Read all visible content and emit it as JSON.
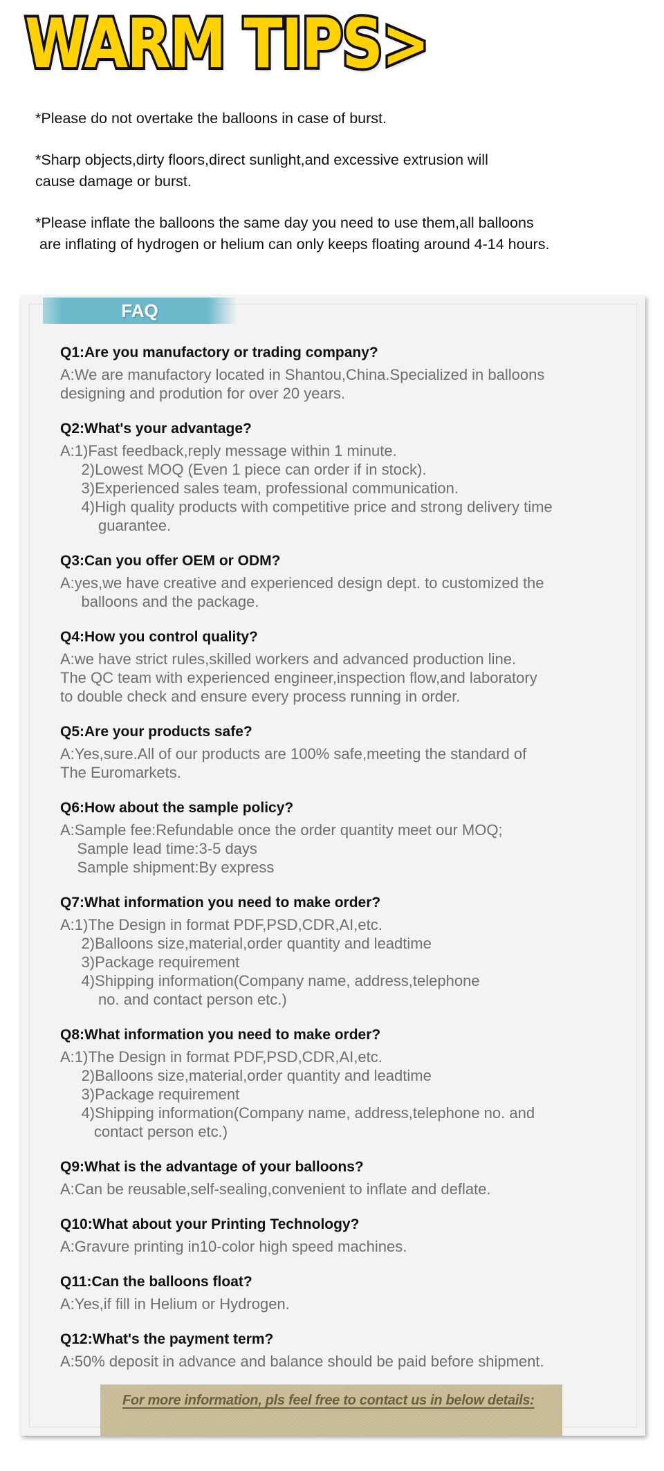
{
  "title": "WARM TIPS>",
  "tips": [
    "*Please do not overtake the balloons in case of burst.",
    "*Sharp objects,dirty floors,direct sunlight,and excessive extrusion will\ncause damage or burst.",
    "*Please inflate the balloons the same day you need to use them,all balloons\n are inflating of hydrogen or helium can only keeps floating around 4-14 hours."
  ],
  "faq": {
    "tab_label": "FAQ",
    "items": [
      {
        "q": "Q1:Are you manufactory or trading company?",
        "a": [
          "A:We are manufactory located in Shantou,China.Specialized in balloons",
          "designing and prodution for over 20 years."
        ]
      },
      {
        "q": "Q2:What's your advantage?",
        "a": [
          "A:1)Fast feedback,reply message within 1 minute.",
          "     2)Lowest MOQ (Even 1 piece can order if in stock).",
          "     3)Experienced sales team, professional communication.",
          "     4)High quality products with competitive price and strong delivery time",
          "         guarantee."
        ]
      },
      {
        "q": "Q3:Can you offer OEM or ODM?",
        "a": [
          "A:yes,we have creative and experienced design dept. to customized the",
          "     balloons and the package."
        ]
      },
      {
        "q": "Q4:How you control quality?",
        "a": [
          "A:we have strict rules,skilled workers and advanced production line.",
          "The QC team with experienced engineer,inspection flow,and laboratory",
          "to double check and ensure every process running in order."
        ]
      },
      {
        "q": "Q5:Are your products safe?",
        "a": [
          "A:Yes,sure.All of our products are 100% safe,meeting the standard of",
          "The Euromarkets."
        ]
      },
      {
        "q": "Q6:How about the sample policy?",
        "a": [
          "A:Sample fee:Refundable once the order quantity meet our MOQ;",
          "    Sample lead time:3-5 days",
          "    Sample shipment:By express"
        ]
      },
      {
        "q": "Q7:What information you need to make order?",
        "a": [
          "A:1)The Design in format PDF,PSD,CDR,AI,etc.",
          "     2)Balloons size,material,order quantity and leadtime",
          "     3)Package requirement",
          "     4)Shipping information(Company name, address,telephone",
          "         no. and contact person etc.)"
        ]
      },
      {
        "q": "Q8:What information you need to make order?",
        "a": [
          "A:1)The Design in format PDF,PSD,CDR,AI,etc.",
          "     2)Balloons size,material,order quantity and leadtime",
          "     3)Package requirement",
          "     4)Shipping information(Company name, address,telephone no. and",
          "        contact person etc.)"
        ]
      },
      {
        "q": "Q9:What is the advantage of your balloons?",
        "a": [
          "A:Can be reusable,self-sealing,convenient to inflate and deflate."
        ]
      },
      {
        "q": "Q10:What about your Printing Technology?",
        "a": [
          "A:Gravure printing in10-color high speed machines."
        ]
      },
      {
        "q": "Q11:Can the balloons float?",
        "a": [
          "A:Yes,if fill in Helium or Hydrogen."
        ]
      },
      {
        "q": "Q12:What's the payment term?",
        "a": [
          "A:50% deposit in advance and balance should be paid before shipment."
        ]
      }
    ]
  },
  "footer": {
    "text": "For more information, pls feel free to contact us in below details:"
  },
  "colors": {
    "title_fill": "#ffd200",
    "faq_tab": "#6db9cc",
    "footer_box": "#cbbf98",
    "answer_text": "#6e6e6e"
  }
}
